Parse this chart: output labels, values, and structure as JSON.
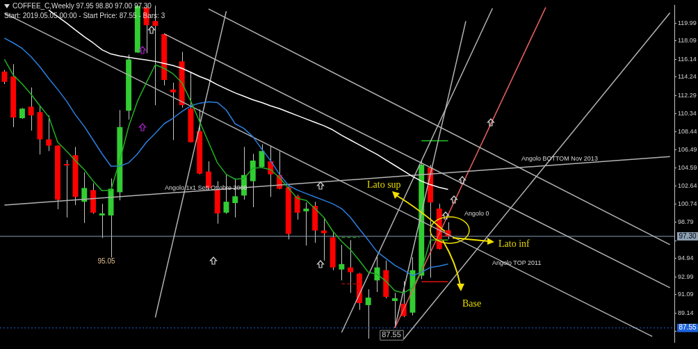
{
  "chart_data": {
    "type": "candlestick",
    "title": "COFFEE_C,Weekly 97.95 98.80 97.00 97.30",
    "subtitle": "Start: 2019.05.05 00:00 - Start Price: 87.55 - Bars: 3",
    "categories": [
      null,
      null,
      null,
      null,
      null,
      null,
      null,
      null,
      null,
      null,
      null,
      null,
      null,
      null,
      null,
      null,
      null,
      null,
      null,
      null,
      null,
      null,
      null,
      null,
      null,
      null,
      null,
      null,
      null,
      null,
      null,
      null,
      null,
      null,
      null,
      null,
      null,
      null,
      null,
      null,
      null,
      null,
      null,
      null,
      null,
      null,
      null,
      null,
      null,
      null,
      null,
      null,
      null,
      null,
      null,
      null,
      null,
      null,
      null,
      null,
      null,
      null,
      null,
      null,
      null,
      null,
      null,
      null,
      null,
      null,
      null,
      null,
      null,
      null,
      null,
      null
    ],
    "ohlc": [
      [
        114.82,
        115.0,
        113.5,
        113.73
      ],
      [
        114.31,
        115.62,
        108.92,
        109.94
      ],
      [
        109.87,
        110.95,
        109.8,
        110.89
      ],
      [
        111.1,
        113.14,
        108.55,
        110.16
      ],
      [
        110.52,
        111.18,
        106.01,
        107.61
      ],
      [
        107.61,
        110.16,
        106.37,
        106.95
      ],
      [
        106.95,
        107.0,
        100.18,
        101.2
      ],
      [
        104.99,
        105.42,
        99.31,
        104.84
      ],
      [
        105.93,
        106.81,
        100.62,
        101.49
      ],
      [
        100.98,
        104.11,
        98.72,
        102.44
      ],
      [
        102.22,
        102.95,
        99.7,
        99.82
      ],
      [
        99.52,
        100.76,
        97.12,
        99.74
      ],
      [
        99.52,
        103.46,
        95.05,
        102.36
      ],
      [
        102.0,
        110.74,
        101.13,
        108.92
      ],
      [
        110.67,
        116.64,
        109.72,
        116.13
      ],
      [
        116.86,
        121.85,
        116.8,
        121.8
      ],
      [
        121.66,
        121.85,
        116.79,
        119.77
      ],
      [
        120.21,
        121.85,
        111.25,
        119.7
      ],
      [
        118.82,
        118.9,
        113.36,
        113.94
      ],
      [
        112.93,
        113.65,
        107.54,
        112.63
      ],
      [
        115.91,
        116.93,
        111.0,
        111.25
      ],
      [
        110.89,
        114.82,
        107.3,
        107.32
      ],
      [
        108.48,
        110.81,
        103.9,
        103.97
      ],
      [
        104.19,
        105.28,
        102.3,
        102.44
      ],
      [
        102.29,
        103.17,
        98.65,
        99.74
      ],
      [
        99.82,
        103.9,
        99.7,
        100.98
      ],
      [
        100.84,
        103.46,
        99.31,
        101.56
      ],
      [
        101.64,
        106.81,
        101.2,
        103.82
      ],
      [
        103.17,
        106.08,
        100.4,
        105.35
      ],
      [
        104.7,
        107.1,
        104.6,
        106.37
      ],
      [
        105.28,
        106.95,
        101.49,
        103.9
      ],
      [
        103.82,
        106.37,
        102.3,
        102.36
      ],
      [
        102.51,
        102.6,
        96.97,
        97.56
      ],
      [
        101.56,
        101.71,
        99.08,
        99.82
      ],
      [
        99.96,
        100.91,
        96.32,
        100.25
      ],
      [
        100.54,
        100.98,
        96.61,
        97.92
      ],
      [
        97.92,
        99.16,
        94.72,
        97.63
      ],
      [
        97.19,
        97.85,
        93.7,
        93.99
      ],
      [
        93.77,
        96.39,
        92.61,
        94.35
      ],
      [
        93.99,
        96.9,
        91.29,
        93.48
      ],
      [
        93.33,
        93.4,
        89.47,
        90.2
      ],
      [
        89.98,
        91.66,
        86.41,
        90.78
      ],
      [
        92.61,
        95.15,
        91.37,
        93.99
      ],
      [
        93.7,
        94.72,
        90.7,
        90.86
      ],
      [
        90.42,
        91.29,
        87.55,
        90.71
      ],
      [
        90.13,
        92.53,
        88.7,
        88.82
      ],
      [
        89.18,
        95.08,
        88.89,
        93.7
      ],
      [
        93.11,
        105.35,
        92.75,
        104.91
      ],
      [
        104.62,
        104.9,
        92.9,
        100.91
      ],
      [
        100.25,
        100.76,
        95.9,
        95.95
      ],
      [
        97.95,
        98.8,
        97.0,
        97.3
      ],
      null,
      null,
      null,
      null,
      null,
      null,
      null,
      null,
      null,
      null,
      null,
      null,
      null,
      null,
      null,
      null,
      null,
      null,
      null,
      null,
      null,
      null,
      null,
      null,
      null
    ],
    "colors": [
      "#ff0000",
      "#ff0000",
      "#32cd32",
      "#ff0000",
      "#ff0000",
      "#ff0000",
      "#ff0000",
      "#ff0000",
      "#ff0000",
      "#32cd32",
      "#ff0000",
      "#32cd32",
      "#32cd32",
      "#32cd32",
      "#32cd32",
      "#32cd32",
      "#ff0000",
      "#ff0000",
      "#ff0000",
      "#ff0000",
      "#ff0000",
      "#ff0000",
      "#ff0000",
      "#ff0000",
      "#ff0000",
      "#32cd32",
      "#32cd32",
      "#32cd32",
      "#32cd32",
      "#32cd32",
      "#ff0000",
      "#ff0000",
      "#ff0000",
      "#ff0000",
      "#32cd32",
      "#ff0000",
      "#ff0000",
      "#ff0000",
      "#32cd32",
      "#ff0000",
      "#ff0000",
      "#32cd32",
      "#32cd32",
      "#ff0000",
      "#32cd32",
      "#ff0000",
      "#32cd32",
      "#32cd32",
      "#ff0000",
      "#ff0000",
      "#ff0000",
      null,
      null,
      null,
      null,
      null,
      null,
      null,
      null,
      null,
      null,
      null,
      null,
      null,
      null,
      null,
      null,
      null,
      null,
      null,
      null,
      null,
      null,
      null,
      null,
      null
    ],
    "series": [
      {
        "type": "line",
        "color": "#22b022",
        "values": [
          116.13,
          114.45,
          113.51,
          112.42,
          111.18,
          110.01,
          107.32,
          106.37,
          105.35,
          104.4,
          103.17,
          102.15,
          102.22,
          105.35,
          108.99,
          111.69,
          113.65,
          115.55,
          115.18,
          114.6,
          113.65,
          111.69,
          109.5,
          107.32,
          105.13,
          103.89,
          103.38,
          103.46,
          104.55,
          104.62,
          104.4,
          103.53,
          102.44,
          101.34,
          101.13,
          100.25,
          99.31,
          97.85,
          96.76,
          95.88,
          94.72,
          93.48,
          93.26,
          92.53,
          91.51,
          91.29,
          91.8,
          93.7,
          96.9,
          96.9,
          96.9,
          null,
          null,
          null,
          null,
          null,
          null,
          null,
          null,
          null,
          null,
          null,
          null,
          null,
          null,
          null,
          null,
          null,
          null,
          null,
          null,
          null,
          null,
          null,
          null,
          null
        ]
      },
      {
        "type": "line",
        "color": "#2b7fe0",
        "values": [
          118.39,
          117.88,
          117.29,
          116.42,
          115.33,
          114.09,
          112.93,
          111.69,
          110.23,
          108.99,
          107.54,
          106.08,
          104.77,
          104.77,
          105.13,
          106.08,
          107.32,
          108.26,
          109.28,
          109.87,
          110.59,
          111.18,
          111.47,
          111.61,
          111.54,
          110.74,
          109.28,
          108.77,
          107.9,
          106.59,
          105.35,
          103.89,
          102.73,
          102.22,
          101.85,
          101.49,
          101.13,
          100.76,
          100.25,
          99.31,
          98.07,
          96.9,
          95.66,
          94.94,
          94.21,
          93.7,
          93.11,
          93.48,
          93.99,
          94.13,
          94.35,
          null,
          null,
          null,
          null,
          null,
          null,
          null,
          null,
          null,
          null,
          null,
          null,
          null,
          null,
          null,
          null,
          null,
          null,
          null,
          null,
          null,
          null,
          null,
          null,
          null
        ]
      },
      {
        "type": "line",
        "color": "#ffffff",
        "values": [
          null,
          null,
          null,
          null,
          null,
          121.37,
          120.68,
          119.99,
          119.26,
          118.53,
          117.88,
          117.15,
          116.71,
          116.49,
          116.35,
          116.2,
          116.06,
          115.91,
          115.69,
          115.47,
          115.18,
          114.75,
          114.31,
          113.94,
          113.43,
          112.99,
          112.56,
          112.2,
          111.83,
          111.54,
          111.18,
          110.89,
          110.52,
          110.16,
          109.79,
          109.43,
          109.07,
          108.63,
          108.05,
          107.54,
          107.03,
          106.52,
          106.01,
          105.42,
          104.84,
          104.26,
          103.67,
          103.17,
          102.8,
          102.51,
          102.29,
          null,
          null,
          null,
          null,
          null,
          null,
          null,
          null,
          null,
          null,
          null,
          null,
          null,
          null,
          null,
          null,
          null,
          null,
          null,
          null,
          null,
          null,
          null,
          null,
          null
        ]
      },
      {
        "type": "line",
        "color": "#b4b4b4",
        "values": [
          100.62,
          null,
          null,
          null,
          null,
          null,
          null,
          null,
          null,
          null,
          null,
          null,
          null,
          null,
          null,
          null,
          null,
          null,
          null,
          null,
          null,
          null,
          null,
          null,
          null,
          null,
          null,
          null,
          null,
          null,
          null,
          null,
          null,
          null,
          null,
          null,
          null,
          null,
          null,
          null,
          null,
          null,
          null,
          null,
          null,
          null,
          null,
          null,
          null,
          null,
          null,
          null,
          null,
          null,
          null,
          null,
          null,
          null,
          null,
          null,
          null,
          null,
          null,
          null,
          null,
          null,
          null,
          null,
          null,
          null,
          null,
          null,
          null,
          null,
          null,
          105.79
        ]
      },
      {
        "type": "line",
        "color": "#b4b4b4",
        "values": [
          121.05,
          null,
          null,
          null,
          null,
          null,
          null,
          null,
          null,
          null,
          null,
          null,
          null,
          null,
          null,
          null,
          null,
          null,
          null,
          null,
          null,
          null,
          null,
          null,
          null,
          null,
          null,
          null,
          null,
          null,
          null,
          null,
          null,
          null,
          null,
          null,
          null,
          null,
          null,
          null,
          null,
          null,
          null,
          null,
          null,
          null,
          null,
          null,
          null,
          null,
          null,
          null,
          null,
          null,
          null,
          null,
          null,
          null,
          null,
          null,
          null,
          null,
          null,
          null,
          null,
          null,
          null,
          null,
          null,
          null,
          null,
          null,
          null,
          86.65,
          null,
          null
        ]
      },
      {
        "type": "line",
        "color": "#b4b4b4",
        "values": [
          null,
          null,
          null,
          null,
          null,
          null,
          null,
          null,
          null,
          null,
          null,
          null,
          null,
          null,
          null,
          null,
          null,
          null,
          null,
          null,
          null,
          null,
          null,
          121.5,
          null,
          null,
          null,
          null,
          null,
          null,
          null,
          null,
          null,
          null,
          null,
          null,
          null,
          null,
          null,
          null,
          null,
          null,
          null,
          null,
          null,
          null,
          null,
          null,
          null,
          null,
          null,
          null,
          null,
          null,
          null,
          null,
          null,
          null,
          null,
          null,
          null,
          null,
          null,
          null,
          null,
          null,
          null,
          null,
          null,
          null,
          null,
          null,
          null,
          null,
          null,
          96.42
        ]
      },
      {
        "type": "line",
        "color": "#b4b4b4",
        "values": [
          null,
          null,
          null,
          null,
          null,
          null,
          null,
          null,
          null,
          null,
          null,
          null,
          null,
          null,
          null,
          null,
          null,
          null,
          118.85,
          null,
          null,
          null,
          null,
          null,
          null,
          null,
          null,
          null,
          null,
          null,
          null,
          null,
          null,
          null,
          null,
          null,
          null,
          null,
          null,
          null,
          null,
          null,
          null,
          null,
          null,
          null,
          null,
          null,
          null,
          null,
          null,
          null,
          null,
          null,
          null,
          null,
          null,
          null,
          null,
          null,
          null,
          null,
          null,
          null,
          null,
          null,
          null,
          null,
          null,
          null,
          null,
          null,
          null,
          null,
          null,
          91.83
        ]
      },
      {
        "type": "line",
        "color": "#e86060",
        "values": [
          null,
          null,
          null,
          null,
          null,
          null,
          null,
          null,
          null,
          null,
          null,
          null,
          null,
          null,
          null,
          null,
          null,
          null,
          null,
          null,
          null,
          null,
          null,
          null,
          null,
          null,
          null,
          null,
          null,
          null,
          null,
          null,
          null,
          null,
          null,
          null,
          null,
          null,
          null,
          null,
          null,
          null,
          null,
          null,
          87.55,
          null,
          null,
          null,
          null,
          null,
          null,
          null,
          null,
          null,
          null,
          null,
          null,
          null,
          null,
          null,
          null,
          121.66,
          null,
          null,
          null,
          null,
          null,
          null,
          null,
          null,
          null,
          null,
          null,
          null,
          null,
          null
        ]
      },
      {
        "type": "line",
        "color": "#b4b4b4",
        "values": [
          null,
          null,
          null,
          null,
          null,
          null,
          null,
          null,
          null,
          null,
          null,
          null,
          null,
          null,
          null,
          null,
          null,
          null,
          null,
          null,
          null,
          null,
          null,
          null,
          null,
          null,
          null,
          null,
          null,
          null,
          null,
          null,
          null,
          null,
          null,
          null,
          null,
          null,
          null,
          null,
          null,
          null,
          null,
          null,
          87.55,
          null,
          null,
          null,
          null,
          null,
          null,
          null,
          120.2,
          null,
          null,
          null,
          null,
          null,
          null,
          null,
          null,
          null,
          null,
          null,
          null,
          null,
          null,
          null,
          null,
          null,
          null,
          null,
          null,
          null,
          null,
          null
        ]
      },
      {
        "type": "line",
        "color": "#b4b4b4",
        "values": [
          null,
          null,
          null,
          null,
          null,
          null,
          null,
          null,
          null,
          null,
          null,
          null,
          null,
          null,
          null,
          null,
          null,
          null,
          null,
          null,
          null,
          null,
          null,
          null,
          null,
          null,
          null,
          null,
          null,
          null,
          null,
          null,
          null,
          null,
          null,
          null,
          null,
          null,
          87.07,
          null,
          null,
          null,
          null,
          null,
          null,
          null,
          null,
          null,
          null,
          null,
          null,
          null,
          null,
          null,
          null,
          121.56,
          null,
          null,
          null,
          null,
          null,
          null,
          null,
          null,
          null,
          null,
          null,
          null,
          null,
          null,
          null,
          null,
          null,
          null,
          null,
          null
        ]
      },
      {
        "type": "line",
        "color": "#b4b4b4",
        "values": [
          null,
          null,
          null,
          null,
          null,
          null,
          null,
          null,
          null,
          null,
          null,
          null,
          null,
          null,
          null,
          null,
          null,
          null,
          null,
          null,
          null,
          null,
          null,
          null,
          null,
          null,
          null,
          null,
          null,
          null,
          null,
          null,
          null,
          null,
          null,
          null,
          null,
          null,
          null,
          null,
          null,
          null,
          null,
          null,
          null,
          86.37,
          null,
          null,
          null,
          null,
          null,
          null,
          null,
          null,
          null,
          null,
          null,
          null,
          null,
          null,
          null,
          null,
          null,
          null,
          null,
          null,
          null,
          null,
          null,
          null,
          null,
          null,
          null,
          null,
          null,
          121.08
        ]
      },
      {
        "type": "line",
        "color": "#b4b4b4",
        "values": [
          null,
          null,
          null,
          null,
          null,
          null,
          null,
          null,
          null,
          null,
          null,
          null,
          null,
          null,
          null,
          null,
          null,
          88.67,
          null,
          null,
          null,
          null,
          null,
          null,
          null,
          121.26,
          null,
          null,
          null,
          null,
          null,
          null,
          null,
          null,
          null,
          null,
          null,
          null,
          null,
          null,
          null,
          null,
          null,
          null,
          null,
          null,
          null,
          null,
          null,
          null,
          null,
          null,
          null,
          null,
          null,
          null,
          null,
          null,
          null,
          null,
          null,
          null,
          null,
          null,
          null,
          null,
          null,
          null,
          null,
          null,
          null,
          null,
          null,
          null,
          null,
          null
        ]
      },
      {
        "type": "line",
        "color": "#22cc22",
        "values": [
          null,
          null,
          null,
          null,
          null,
          null,
          null,
          null,
          null,
          null,
          null,
          null,
          null,
          null,
          null,
          null,
          null,
          null,
          null,
          null,
          null,
          null,
          null,
          null,
          null,
          null,
          null,
          null,
          null,
          null,
          null,
          null,
          null,
          null,
          null,
          null,
          null,
          null,
          null,
          null,
          null,
          null,
          null,
          null,
          null,
          null,
          null,
          107.46,
          107.46,
          107.46,
          107.46,
          null,
          null,
          null,
          null,
          null,
          null,
          null,
          null,
          null,
          null,
          null,
          null,
          null,
          null,
          null,
          null,
          null,
          null,
          null,
          null,
          null,
          null,
          null,
          null,
          null
        ]
      },
      {
        "type": "line",
        "color": "#e01010",
        "values": [
          null,
          null,
          null,
          null,
          null,
          null,
          null,
          null,
          null,
          null,
          null,
          null,
          null,
          null,
          null,
          null,
          null,
          null,
          null,
          null,
          null,
          null,
          null,
          null,
          null,
          null,
          null,
          null,
          null,
          null,
          null,
          null,
          null,
          null,
          null,
          null,
          null,
          null,
          null,
          null,
          null,
          null,
          null,
          null,
          null,
          null,
          null,
          92.46,
          92.46,
          92.46,
          92.46,
          null,
          null,
          null,
          null,
          null,
          null,
          null,
          null,
          null,
          null,
          null,
          null,
          null,
          null,
          null,
          null,
          null,
          null,
          null,
          null,
          null,
          null,
          null,
          null,
          null
        ]
      },
      {
        "type": "line",
        "color": "#8b1010",
        "line_style": "dashed",
        "values": [
          null,
          null,
          null,
          null,
          null,
          null,
          null,
          null,
          null,
          null,
          null,
          null,
          null,
          null,
          null,
          null,
          null,
          null,
          null,
          null,
          null,
          null,
          null,
          null,
          null,
          null,
          null,
          null,
          null,
          null,
          null,
          null,
          null,
          null,
          null,
          null,
          null,
          null,
          92.24,
          92.24,
          92.24,
          null,
          null,
          null,
          null,
          null,
          null,
          null,
          null,
          null,
          null,
          null,
          null,
          null,
          null,
          null,
          null,
          null,
          null,
          null,
          null,
          null,
          null,
          null,
          null,
          null,
          null,
          null,
          null,
          null,
          null,
          null,
          null,
          null,
          null,
          null
        ]
      },
      {
        "type": "line",
        "color": "#1a8a1a",
        "line_style": "dashed",
        "values": [
          null,
          null,
          null,
          null,
          null,
          null,
          null,
          null,
          null,
          null,
          null,
          null,
          null,
          null,
          null,
          null,
          null,
          null,
          null,
          null,
          null,
          null,
          null,
          null,
          null,
          null,
          null,
          null,
          null,
          null,
          null,
          null,
          null,
          null,
          null,
          null,
          null,
          null,
          97.19,
          97.19,
          97.19,
          null,
          null,
          null,
          null,
          null,
          null,
          null,
          null,
          null,
          null,
          null,
          null,
          null,
          null,
          null,
          null,
          null,
          null,
          null,
          null,
          null,
          null,
          null,
          null,
          null,
          null,
          null,
          null,
          null,
          null,
          null,
          null,
          null,
          null,
          null
        ]
      }
    ],
    "ylim": [
      86.05,
      121.9
    ],
    "yticks": [
      {
        "value": 87.19,
        "label": null
      },
      89.14,
      91.09,
      92.99,
      94.94,
      {
        "value": 96.84,
        "label": null
      },
      98.79,
      100.74,
      102.64,
      104.59,
      106.49,
      108.44,
      110.34,
      112.29,
      114.24,
      116.14,
      118.09,
      119.99
    ],
    "grid": false,
    "tick_labels": "y",
    "ref_lines": [
      {
        "axis": "y",
        "value": 97.3,
        "label": "97.30",
        "color": "#8ca0b4"
      },
      {
        "axis": "y",
        "value": 87.55,
        "label": "87.55",
        "color": "#1e64dc",
        "line_style": "dotted"
      }
    ],
    "annotations": [
      "Angolo 1x1 Sett Ottobre 2008",
      "Angolo BOTTOM Nov 2013",
      "Angolo 0",
      "Angolo TOP 2011",
      "Lato sup",
      "Lato inf",
      "Base",
      "95.05",
      {
        "text": "87.55",
        "y": 87.55
      }
    ]
  }
}
